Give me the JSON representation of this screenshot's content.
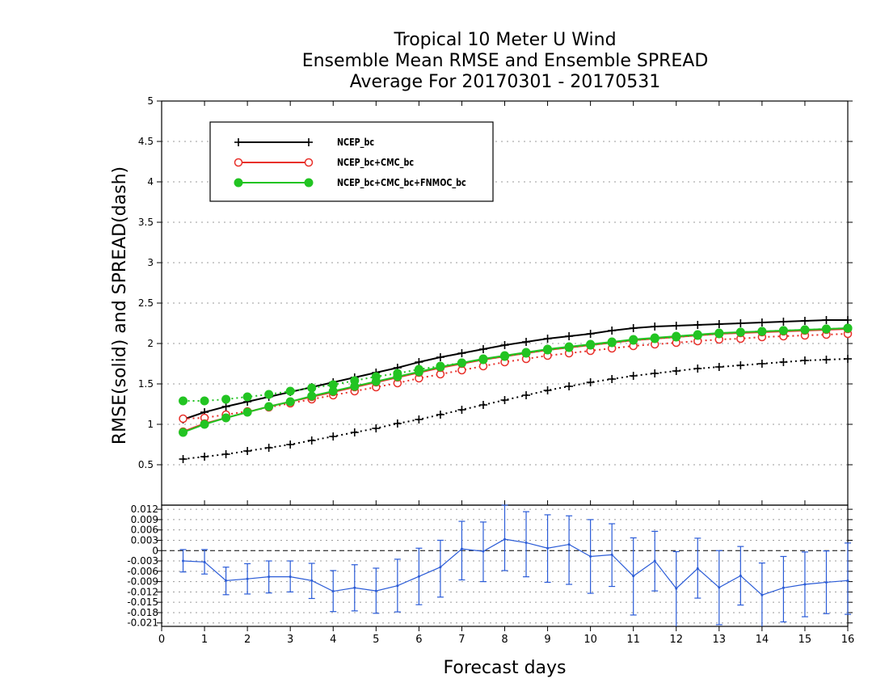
{
  "chart_data": [
    {
      "type": "line",
      "title": "Tropical 10 Meter U Wind",
      "subtitle": "Ensemble Mean RMSE and Ensemble SPREAD",
      "subtitle2": "Average For 20170301 - 20170531",
      "ylabel": "RMSE(solid) and SPREAD(dash)",
      "xlabel": "",
      "xlim": [
        0,
        16
      ],
      "ylim": [
        0,
        5
      ],
      "y_ticks": [
        "0.5",
        "1",
        "1.5",
        "2",
        "2.5",
        "3",
        "3.5",
        "4",
        "4.5",
        "5"
      ],
      "grid": true,
      "legend_position": "top-left",
      "x": [
        0.5,
        1.0,
        1.5,
        2.0,
        2.5,
        3.0,
        3.5,
        4.0,
        4.5,
        5.0,
        5.5,
        6.0,
        6.5,
        7.0,
        7.5,
        8.0,
        8.5,
        9.0,
        9.5,
        10.0,
        10.5,
        11.0,
        11.5,
        12.0,
        12.5,
        13.0,
        13.5,
        14.0,
        14.5,
        15.0,
        15.5,
        16.0
      ],
      "series": [
        {
          "name": "NCEP_bc",
          "color": "#000000",
          "marker": "plus",
          "rmse": [
            1.06,
            1.15,
            1.22,
            1.28,
            1.34,
            1.4,
            1.46,
            1.52,
            1.58,
            1.64,
            1.7,
            1.77,
            1.83,
            1.88,
            1.93,
            1.98,
            2.02,
            2.06,
            2.09,
            2.12,
            2.16,
            2.19,
            2.21,
            2.22,
            2.23,
            2.24,
            2.25,
            2.26,
            2.27,
            2.28,
            2.29,
            2.29
          ],
          "spread": [
            0.57,
            0.6,
            0.63,
            0.67,
            0.71,
            0.75,
            0.8,
            0.85,
            0.9,
            0.95,
            1.01,
            1.06,
            1.12,
            1.18,
            1.24,
            1.3,
            1.36,
            1.42,
            1.47,
            1.52,
            1.56,
            1.6,
            1.63,
            1.66,
            1.69,
            1.71,
            1.73,
            1.75,
            1.77,
            1.79,
            1.8,
            1.81
          ]
        },
        {
          "name": "NCEP_bc+CMC_bc",
          "color": "#e8302a",
          "marker": "open-circle",
          "rmse": [
            0.91,
            1.01,
            1.08,
            1.15,
            1.22,
            1.28,
            1.34,
            1.4,
            1.46,
            1.52,
            1.58,
            1.64,
            1.7,
            1.75,
            1.8,
            1.84,
            1.88,
            1.92,
            1.95,
            1.98,
            2.01,
            2.04,
            2.06,
            2.08,
            2.1,
            2.12,
            2.13,
            2.14,
            2.15,
            2.16,
            2.17,
            2.18
          ],
          "spread": [
            1.07,
            1.08,
            1.12,
            1.16,
            1.21,
            1.26,
            1.31,
            1.36,
            1.41,
            1.46,
            1.51,
            1.57,
            1.62,
            1.67,
            1.72,
            1.77,
            1.81,
            1.85,
            1.88,
            1.91,
            1.94,
            1.97,
            1.99,
            2.01,
            2.03,
            2.05,
            2.06,
            2.08,
            2.09,
            2.1,
            2.11,
            2.12
          ]
        },
        {
          "name": "NCEP_bc+CMC_bc+FNMOC_bc",
          "color": "#22c422",
          "marker": "filled-circle",
          "rmse": [
            0.9,
            1.0,
            1.08,
            1.15,
            1.22,
            1.28,
            1.35,
            1.41,
            1.47,
            1.53,
            1.59,
            1.65,
            1.71,
            1.76,
            1.81,
            1.85,
            1.89,
            1.93,
            1.96,
            1.99,
            2.02,
            2.05,
            2.07,
            2.09,
            2.11,
            2.13,
            2.14,
            2.15,
            2.16,
            2.17,
            2.18,
            2.19
          ],
          "spread": [
            1.29,
            1.29,
            1.31,
            1.34,
            1.37,
            1.41,
            1.45,
            1.49,
            1.54,
            1.59,
            1.63,
            1.68,
            1.72,
            1.76,
            1.8,
            1.84,
            1.88,
            1.92,
            1.95,
            1.98,
            2.01,
            2.04,
            2.06,
            2.08,
            2.1,
            2.12,
            2.14,
            2.15,
            2.16,
            2.17,
            2.18,
            2.19
          ]
        }
      ]
    },
    {
      "type": "line",
      "xlabel": "Forecast days",
      "xlim": [
        0,
        16
      ],
      "ylim": [
        -0.022,
        0.0132
      ],
      "y_ticks": [
        "-0.021",
        "-0.018",
        "-0.015",
        "-0.012",
        "-0.009",
        "-0.006",
        "-0.003",
        "0",
        "0.003",
        "0.006",
        "0.009",
        "0.012"
      ],
      "x_ticks": [
        "0",
        "1",
        "2",
        "3",
        "4",
        "5",
        "6",
        "7",
        "8",
        "9",
        "10",
        "11",
        "12",
        "13",
        "14",
        "15",
        "16"
      ],
      "zero_line": true,
      "grid": true,
      "color": "#2a5bd7",
      "x": [
        0.5,
        1.0,
        1.5,
        2.0,
        2.5,
        3.0,
        3.5,
        4.0,
        4.5,
        5.0,
        5.5,
        6.0,
        6.5,
        7.0,
        7.5,
        8.0,
        8.5,
        9.0,
        9.5,
        10.0,
        10.5,
        11.0,
        11.5,
        12.0,
        12.5,
        13.0,
        13.5,
        14.0,
        14.5,
        15.0,
        15.5,
        16.0
      ],
      "values": [
        -0.003,
        -0.0033,
        -0.0087,
        -0.0082,
        -0.0076,
        -0.0076,
        -0.0087,
        -0.0118,
        -0.0108,
        -0.0117,
        -0.0102,
        -0.0075,
        -0.0048,
        0.0005,
        -0.0002,
        0.0033,
        0.0023,
        0.0007,
        0.0018,
        -0.0017,
        -0.0012,
        -0.0074,
        -0.003,
        -0.011,
        -0.0052,
        -0.0107,
        -0.0073,
        -0.0129,
        -0.0108,
        -0.0098,
        -0.0092,
        -0.0087
      ],
      "error_low": [
        -0.0062,
        -0.0068,
        -0.0128,
        -0.0126,
        -0.0123,
        -0.012,
        -0.0139,
        -0.0177,
        -0.0175,
        -0.0182,
        -0.0178,
        -0.0157,
        -0.0135,
        -0.0085,
        -0.009,
        -0.0058,
        -0.0076,
        -0.0092,
        -0.0098,
        -0.0124,
        -0.0104,
        -0.0187,
        -0.0117,
        -0.0224,
        -0.0138,
        -0.0215,
        -0.0158,
        -0.023,
        -0.0207,
        -0.0192,
        -0.0183,
        -0.0185
      ],
      "error_high": [
        0.0003,
        0.0003,
        -0.0048,
        -0.0038,
        -0.003,
        -0.003,
        -0.0037,
        -0.0058,
        -0.0041,
        -0.0051,
        -0.0025,
        0.0007,
        0.003,
        0.0085,
        0.0083,
        0.0132,
        0.0113,
        0.0104,
        0.0101,
        0.009,
        0.0078,
        0.0037,
        0.0056,
        -0.0003,
        0.0036,
        0.0,
        0.0012,
        -0.0036,
        -0.0017,
        -0.0004,
        -0.0001,
        0.0022
      ]
    }
  ]
}
